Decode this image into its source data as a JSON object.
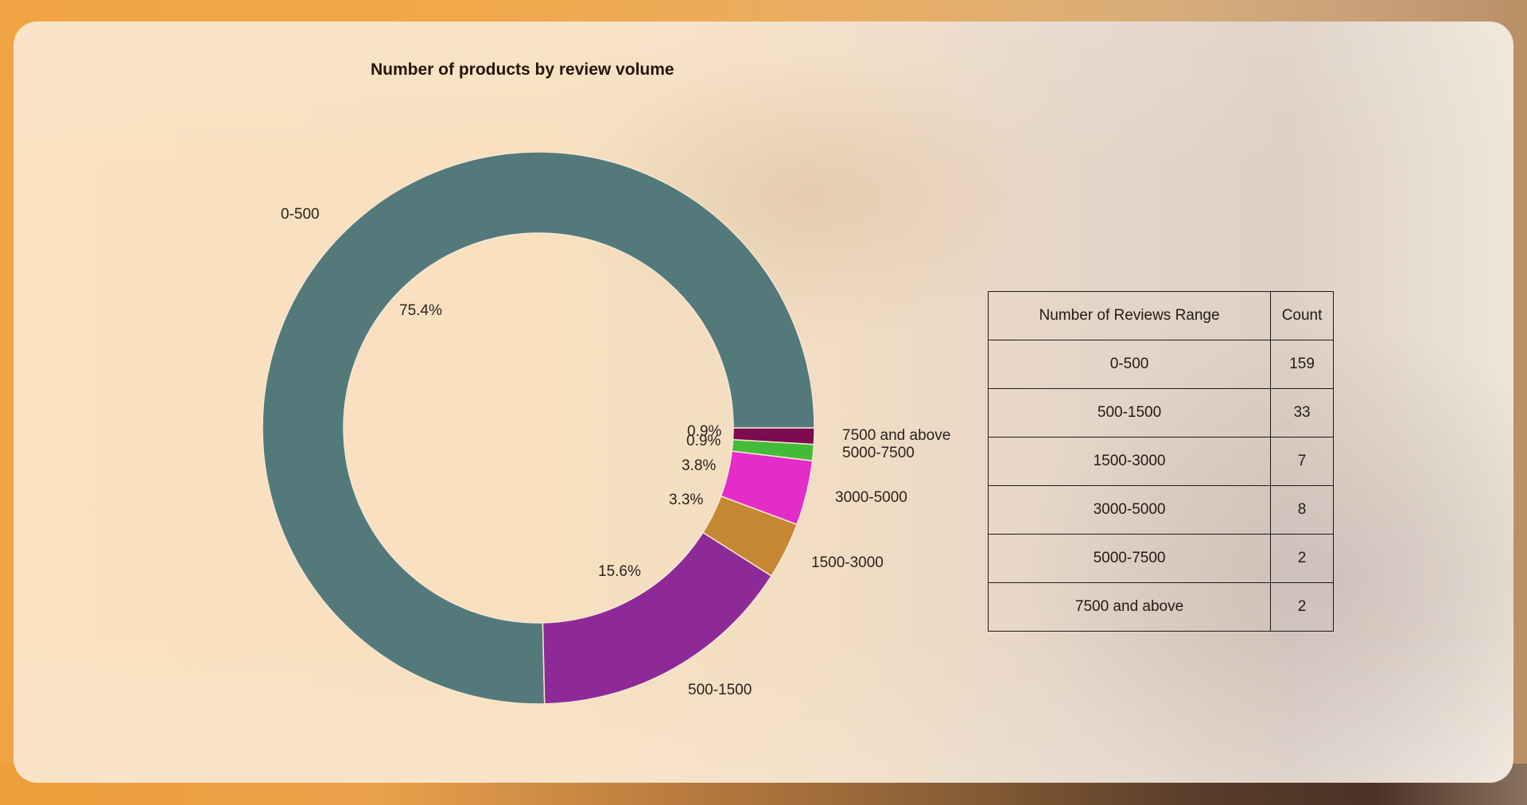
{
  "colors": {
    "page_border": "#f0a445",
    "card_bg": "#f8e0bf",
    "text": "#2a221c",
    "slices": [
      "#54797b",
      "#8e2a98",
      "#c68733",
      "#e42cc8",
      "#43bb3a",
      "#7d0b4f"
    ]
  },
  "chart": {
    "title": "Number of products by review volume"
  },
  "table": {
    "headers": [
      "Number of Reviews Range",
      "Count"
    ],
    "rows": [
      {
        "range": "0-500",
        "count": "159"
      },
      {
        "range": "500-1500",
        "count": "33"
      },
      {
        "range": "1500-3000",
        "count": "7"
      },
      {
        "range": "3000-5000",
        "count": "8"
      },
      {
        "range": "5000-7500",
        "count": "2"
      },
      {
        "range": "7500 and above",
        "count": "2"
      }
    ]
  },
  "chart_data": {
    "type": "pie",
    "style": "donut",
    "title": "Number of products by review volume",
    "categories": [
      "0-500",
      "500-1500",
      "1500-3000",
      "3000-5000",
      "5000-7500",
      "7500 and above"
    ],
    "values": [
      159,
      33,
      7,
      8,
      2,
      2
    ],
    "percent_labels": [
      "75.4%",
      "15.6%",
      "3.3%",
      "3.8%",
      "0.9%",
      "0.9%"
    ],
    "colors": [
      "#54797b",
      "#8e2a98",
      "#c68733",
      "#e42cc8",
      "#43bb3a",
      "#7d0b4f"
    ],
    "start_angle_deg": 0,
    "direction": "counterclockwise",
    "legend": "none (labels placed outside slices)",
    "table": {
      "columns": [
        "Number of Reviews Range",
        "Count"
      ],
      "rows": [
        [
          "0-500",
          159
        ],
        [
          "500-1500",
          33
        ],
        [
          "1500-3000",
          7
        ],
        [
          "3000-5000",
          8
        ],
        [
          "5000-7500",
          2
        ],
        [
          "7500 and above",
          2
        ]
      ]
    }
  }
}
